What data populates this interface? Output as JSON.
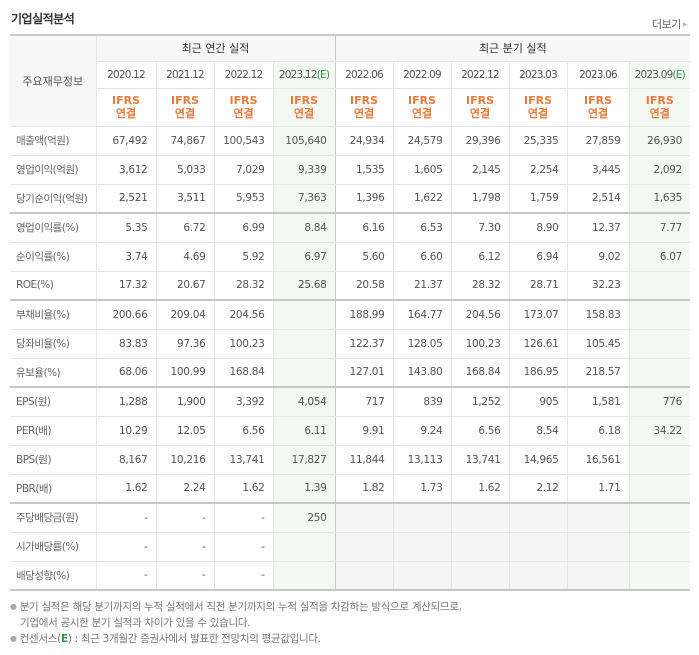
{
  "header": {
    "title": "기업실적분석",
    "more_label": "더보기",
    "more_icon": "triangle-right"
  },
  "table": {
    "row_header_label": "주요재무정보",
    "groups": [
      {
        "label": "최근 연간 실적"
      },
      {
        "label": "최근 분기 실적"
      }
    ],
    "periods": [
      {
        "date": "2020.12",
        "est": "",
        "basis": [
          "IFRS",
          "연결"
        ]
      },
      {
        "date": "2021.12",
        "est": "",
        "basis": [
          "IFRS",
          "연결"
        ]
      },
      {
        "date": "2022.12",
        "est": "",
        "basis": [
          "IFRS",
          "연결"
        ]
      },
      {
        "date": "2023.12",
        "est": "(E)",
        "basis": [
          "IFRS",
          "연결"
        ]
      },
      {
        "date": "2022.06",
        "est": "",
        "basis": [
          "IFRS",
          "연결"
        ]
      },
      {
        "date": "2022.09",
        "est": "",
        "basis": [
          "IFRS",
          "연결"
        ]
      },
      {
        "date": "2022.12",
        "est": "",
        "basis": [
          "IFRS",
          "연결"
        ]
      },
      {
        "date": "2023.03",
        "est": "",
        "basis": [
          "IFRS",
          "연결"
        ]
      },
      {
        "date": "2023.06",
        "est": "",
        "basis": [
          "IFRS",
          "연결"
        ]
      },
      {
        "date": "2023.09",
        "est": "(E)",
        "basis": [
          "IFRS",
          "연결"
        ]
      }
    ],
    "rows": [
      {
        "label": "매출액(억원)",
        "values": [
          "67,492",
          "74,867",
          "100,543",
          "105,640",
          "24,934",
          "24,579",
          "29,396",
          "25,335",
          "27,859",
          "26,930"
        ]
      },
      {
        "label": "영업이익(억원)",
        "values": [
          "3,612",
          "5,033",
          "7,029",
          "9,339",
          "1,535",
          "1,605",
          "2,145",
          "2,254",
          "3,445",
          "2,092"
        ]
      },
      {
        "label": "당기순이익(억원)",
        "values": [
          "2,521",
          "3,511",
          "5,953",
          "7,363",
          "1,396",
          "1,622",
          "1,798",
          "1,759",
          "2,514",
          "1,635"
        ]
      },
      {
        "label": "영업이익률(%)",
        "values": [
          "5.35",
          "6.72",
          "6.99",
          "8.84",
          "6.16",
          "6.53",
          "7.30",
          "8.90",
          "12.37",
          "7.77"
        ]
      },
      {
        "label": "순이익률(%)",
        "values": [
          "3.74",
          "4.69",
          "5.92",
          "6.97",
          "5.60",
          "6.60",
          "6.12",
          "6.94",
          "9.02",
          "6.07"
        ]
      },
      {
        "label": "ROE(%)",
        "values": [
          "17.32",
          "20.67",
          "28.32",
          "25.68",
          "20.58",
          "21.37",
          "28.32",
          "28.71",
          "32.23",
          ""
        ]
      },
      {
        "label": "부채비율(%)",
        "values": [
          "200.66",
          "209.04",
          "204.56",
          "",
          "188.99",
          "164.77",
          "204.56",
          "173.07",
          "158.83",
          ""
        ]
      },
      {
        "label": "당좌비율(%)",
        "values": [
          "83.83",
          "97.36",
          "100.23",
          "",
          "122.37",
          "128.05",
          "100.23",
          "126.61",
          "105.45",
          ""
        ]
      },
      {
        "label": "유보율(%)",
        "values": [
          "68.06",
          "100.99",
          "168.84",
          "",
          "127.01",
          "143.80",
          "168.84",
          "186.95",
          "218.57",
          ""
        ]
      },
      {
        "label": "EPS(원)",
        "values": [
          "1,288",
          "1,900",
          "3,392",
          "4,054",
          "717",
          "839",
          "1,252",
          "905",
          "1,581",
          "776"
        ]
      },
      {
        "label": "PER(배)",
        "values": [
          "10.29",
          "12.05",
          "6.56",
          "6.11",
          "9.91",
          "9.24",
          "6.56",
          "8.54",
          "6.18",
          "34.22"
        ]
      },
      {
        "label": "BPS(원)",
        "values": [
          "8,167",
          "10,216",
          "13,741",
          "17,827",
          "11,844",
          "13,113",
          "13,741",
          "14,965",
          "16,561",
          ""
        ]
      },
      {
        "label": "PBR(배)",
        "values": [
          "1.62",
          "2.24",
          "1.62",
          "1.39",
          "1.82",
          "1.73",
          "1.62",
          "2.12",
          "1.71",
          ""
        ]
      },
      {
        "label": "주당배당금(원)",
        "values": [
          "-",
          "-",
          "-",
          "250",
          "",
          "",
          "",
          "",
          "",
          ""
        ]
      },
      {
        "label": "시가배당률(%)",
        "values": [
          "-",
          "-",
          "-",
          "",
          "",
          "",
          "",
          "",
          "",
          ""
        ]
      },
      {
        "label": "배당성향(%)",
        "values": [
          "-",
          "-",
          "-",
          "",
          "",
          "",
          "",
          "",
          "",
          ""
        ]
      }
    ]
  },
  "notes": {
    "line1": "분기 실적은 해당 분기까지의 누적 실적에서 직전 분기까지의 누적 실적을 차감하는 방식으로 계산되므로,",
    "line2": "기업에서 공시한 분기 실적과 차이가 있을 수 있습니다.",
    "line3_prefix": "컨센서스(",
    "line3_e": "E",
    "line3_suffix": ") : 최근 3개월간 증권사에서 발표한 전망치의 평균값입니다."
  },
  "colors": {
    "ifrs_orange": "#e87b3c",
    "estimate_green": "#2e9b49",
    "estimate_bg": "#f3f8f3",
    "border": "#c8c8c8"
  }
}
